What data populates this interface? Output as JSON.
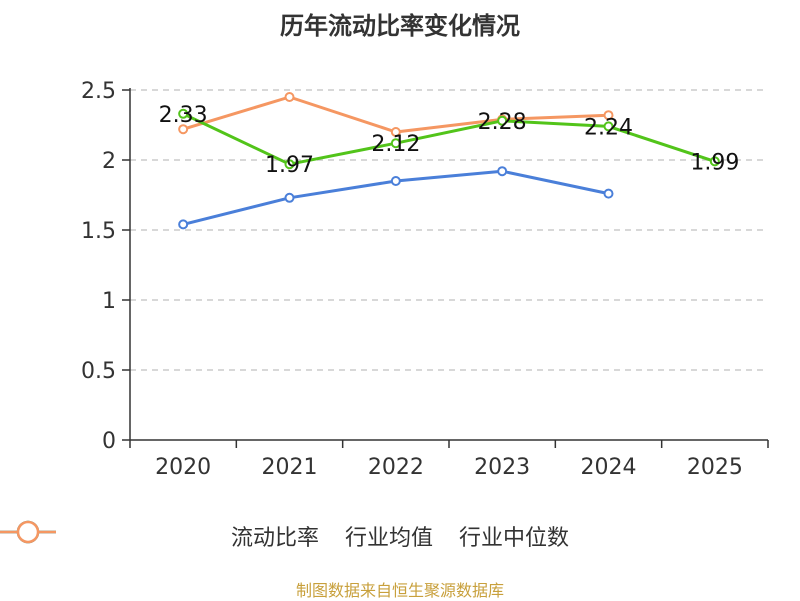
{
  "chart_data": {
    "type": "line",
    "title": "历年流动比率变化情况",
    "categories": [
      "2020",
      "2021",
      "2022",
      "2023",
      "2024",
      "2025"
    ],
    "y_ticks": [
      "0",
      "0.5",
      "1",
      "1.5",
      "2",
      "2.5"
    ],
    "ylim": [
      0,
      2.5
    ],
    "grid": true,
    "legend_position": "bottom",
    "series": [
      {
        "name": "流动比率",
        "color": "#52c41a",
        "values": [
          2.33,
          1.97,
          2.12,
          2.28,
          2.24,
          1.99
        ],
        "labels": [
          "2.33",
          "1.97",
          "2.12",
          "2.28",
          "2.24",
          "1.99"
        ]
      },
      {
        "name": "行业均值",
        "color": "#4a7fd9",
        "values": [
          1.54,
          1.73,
          1.85,
          1.92,
          1.76,
          null
        ]
      },
      {
        "name": "行业中位数",
        "color": "#f59762",
        "values": [
          2.22,
          2.45,
          2.2,
          2.29,
          2.32,
          null
        ]
      }
    ]
  },
  "source": "制图数据来自恒生聚源数据库"
}
